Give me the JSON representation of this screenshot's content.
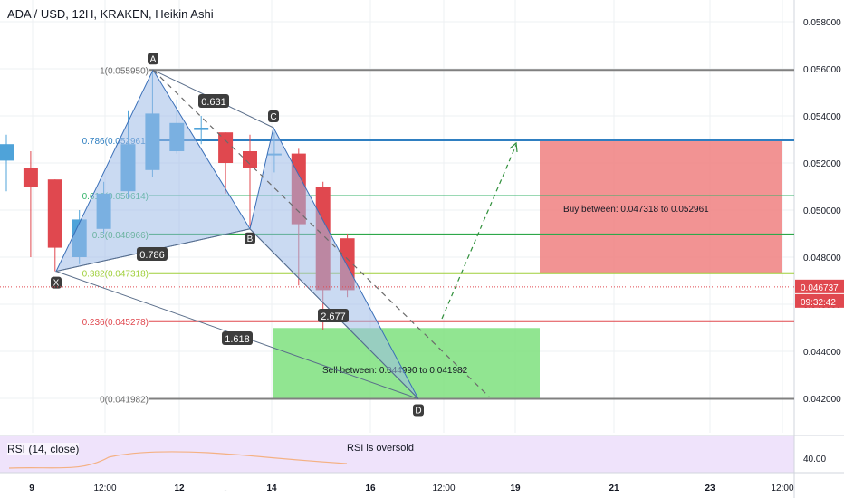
{
  "header": {
    "title": "ADA / USD, 12H, KRAKEN, Heikin Ashi"
  },
  "colors": {
    "bull": "#4fa3d9",
    "bear": "#e0484f",
    "pattern_fill": "#9fbbe8",
    "fib_1": "#808080",
    "fib_786": "#2f7fc1",
    "fib_618": "#34b36a",
    "fib_5": "#2ea84a",
    "fib_382": "#9fcf3a",
    "fib_236": "#e0484f",
    "fib_0": "#808080",
    "buy_box": "#f08080",
    "sell_box": "#7ee07e",
    "current_price": "#e0484f",
    "rsi_line": "#f4b183",
    "rsi_bg": "#efe3fb"
  },
  "chart_data": {
    "type": "candlestick",
    "title": "ADA / USD, 12H, KRAKEN, Heikin Ashi",
    "y_axis": {
      "ylim": [
        0.0405,
        0.0595
      ],
      "ticks": [
        "0.058000",
        "0.056000",
        "0.054000",
        "0.052000",
        "0.050000",
        "0.048000",
        "0.046000",
        "0.044000",
        "0.042000"
      ]
    },
    "x_axis": {
      "ticks": [
        "9",
        "12:00",
        "12",
        "12:00",
        "14",
        "12:00",
        "16",
        "12:00",
        "19",
        "21",
        "23",
        "12:00"
      ]
    },
    "candles": [
      {
        "open": 0.0521,
        "close": 0.0528,
        "high": 0.0532,
        "low": 0.0508
      },
      {
        "open": 0.0518,
        "close": 0.051,
        "high": 0.0525,
        "low": 0.048
      },
      {
        "open": 0.0513,
        "close": 0.0484,
        "high": 0.0513,
        "low": 0.0474
      },
      {
        "open": 0.048,
        "close": 0.0496,
        "high": 0.05,
        "low": 0.0477
      },
      {
        "open": 0.0492,
        "close": 0.0507,
        "high": 0.0512,
        "low": 0.049
      },
      {
        "open": 0.0508,
        "close": 0.0528,
        "high": 0.0542,
        "low": 0.0505
      },
      {
        "open": 0.0517,
        "close": 0.0541,
        "high": 0.0559,
        "low": 0.0514
      },
      {
        "open": 0.0525,
        "close": 0.0537,
        "high": 0.0547,
        "low": 0.0524
      },
      {
        "open": 0.0534,
        "close": 0.0535,
        "high": 0.054,
        "low": 0.0528
      },
      {
        "open": 0.0533,
        "close": 0.052,
        "high": 0.0533,
        "low": 0.0507
      },
      {
        "open": 0.0525,
        "close": 0.0518,
        "high": 0.0532,
        "low": 0.0493
      },
      {
        "open": 0.0524,
        "close": 0.0524,
        "high": 0.0533,
        "low": 0.0516
      },
      {
        "open": 0.0524,
        "close": 0.0494,
        "high": 0.0526,
        "low": 0.0468
      },
      {
        "open": 0.051,
        "close": 0.0466,
        "high": 0.0512,
        "low": 0.0449
      },
      {
        "open": 0.0488,
        "close": 0.0466,
        "high": 0.049,
        "low": 0.0463
      }
    ],
    "fib_levels": [
      {
        "label": "1(0.055950)",
        "value": 0.05595,
        "color": "#808080",
        "width": 2
      },
      {
        "label": "0.786(0.052961)",
        "value": 0.052961,
        "color": "#2f7fc1",
        "width": 2
      },
      {
        "label": "0.618(0.050614)",
        "value": 0.050614,
        "color": "#34b36a",
        "width": 1
      },
      {
        "label": "0.5(0.048966)",
        "value": 0.048966,
        "color": "#2ea84a",
        "width": 2
      },
      {
        "label": "0.382(0.047318)",
        "value": 0.047318,
        "color": "#9fcf3a",
        "width": 2
      },
      {
        "label": "0.236(0.045278)",
        "value": 0.045278,
        "color": "#e0484f",
        "width": 2
      },
      {
        "label": "0(0.041982)",
        "value": 0.041982,
        "color": "#808080",
        "width": 2
      }
    ],
    "harmonic_pattern": {
      "points": [
        {
          "label": "X",
          "value": 0.0474
        },
        {
          "label": "A",
          "value": 0.05595
        },
        {
          "label": "B",
          "value": 0.0492
        },
        {
          "label": "C",
          "value": 0.0535
        },
        {
          "label": "D",
          "value": 0.04198
        }
      ],
      "ratios": [
        "0.786",
        "0.631",
        "2.677",
        "1.618"
      ]
    },
    "zones": [
      {
        "label": "Buy between: 0.047318 to 0.052961",
        "top": 0.052961,
        "bottom": 0.047318,
        "color": "#f08080"
      },
      {
        "label": "Sell between: 0.044990 to 0.041982",
        "top": 0.04499,
        "bottom": 0.041982,
        "color": "#7ee07e"
      }
    ],
    "current_price": {
      "value": 0.046737,
      "label": "0.046737",
      "countdown": "09:32:42"
    },
    "rsi": {
      "label": "RSI (14, close)",
      "note": "RSI is oversold",
      "tick": "40.00"
    }
  }
}
